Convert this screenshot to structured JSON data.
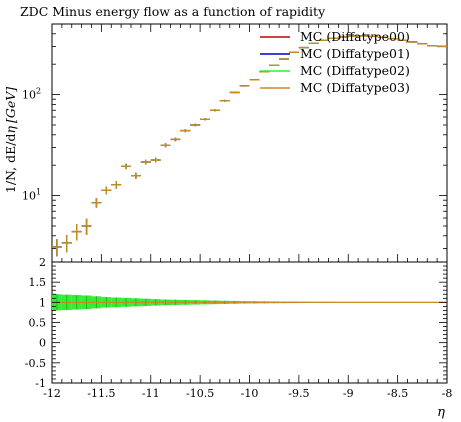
{
  "chart_data": [
    {
      "type": "line",
      "panel": "main",
      "title": "ZDC Minus energy flow as a function of rapidity",
      "ylabel": "1/N dE/dη [GeV]",
      "ylabel_parts": {
        "lhs": "1/N, dE/d",
        "sym": "η",
        "unit": "[GeV]"
      },
      "xlabel": "η",
      "yscale": "log",
      "xlim": [
        -12,
        -8
      ],
      "ylim": [
        2.2,
        500
      ],
      "y_tick_labels": [
        {
          "value": 10,
          "base": "10",
          "exp": "1"
        },
        {
          "value": 100,
          "base": "10",
          "exp": "2"
        }
      ],
      "legend_position": "top-right",
      "bins": {
        "x": [
          -11.95,
          -11.85,
          -11.75,
          -11.65,
          -11.55,
          -11.45,
          -11.35,
          -11.25,
          -11.15,
          -11.05,
          -10.95,
          -10.85,
          -10.75,
          -10.65,
          -10.55,
          -10.45,
          -10.35,
          -10.25,
          -10.15,
          -10.05,
          -9.95,
          -9.85,
          -9.75,
          -9.65,
          -9.55,
          -9.45,
          -9.35,
          -9.25,
          -9.15,
          -9.05,
          -8.95,
          -8.85,
          -8.75,
          -8.65,
          -8.55,
          -8.45,
          -8.35,
          -8.25,
          -8.15,
          -8.05
        ],
        "y": [
          3.1,
          3.4,
          4.4,
          5.0,
          8.5,
          11.3,
          12.8,
          19.5,
          15.7,
          21.5,
          22.5,
          31.5,
          36.0,
          44.0,
          50.0,
          57.0,
          70.0,
          87.0,
          105.0,
          122.0,
          140.0,
          168.0,
          195.0,
          225.0,
          262.0,
          292.0,
          322.0,
          345.0,
          362.0,
          372.0,
          380.0,
          381.0,
          377.0,
          370.0,
          358.0,
          345.0,
          332.0,
          318.0,
          305.0,
          300.0
        ],
        "err_lo": [
          2.5,
          2.75,
          3.6,
          4.1,
          7.6,
          10.3,
          11.7,
          18.3,
          14.6,
          20.3,
          21.3,
          30.0,
          34.5,
          42.4,
          48.4,
          55.4,
          68.2,
          85.0,
          103.0,
          120.0,
          138.0,
          166.0,
          193.0,
          222.0,
          259.0,
          289.0,
          319.0,
          342.0,
          359.0,
          369.0,
          377.0,
          378.0,
          374.0,
          367.0,
          355.0,
          342.0,
          329.0,
          315.0,
          302.0,
          297.0
        ],
        "err_hi": [
          3.7,
          4.05,
          5.2,
          5.9,
          9.4,
          12.3,
          13.9,
          20.7,
          16.8,
          22.7,
          23.7,
          33.0,
          37.5,
          45.6,
          51.6,
          58.6,
          71.8,
          89.0,
          107.0,
          124.0,
          142.0,
          170.0,
          197.0,
          228.0,
          265.0,
          295.0,
          325.0,
          348.0,
          365.0,
          375.0,
          383.0,
          384.0,
          380.0,
          373.0,
          361.0,
          348.0,
          335.0,
          321.0,
          308.0,
          303.0
        ]
      },
      "series": [
        {
          "name": "MC (Diffatype00)",
          "color": "#cc0000"
        },
        {
          "name": "MC (Diffatype01)",
          "color": "#0000cc"
        },
        {
          "name": "MC (Diffatype02)",
          "color": "#33ee33"
        },
        {
          "name": "MC (Diffatype03)",
          "color": "#cc8822"
        }
      ]
    },
    {
      "type": "area",
      "panel": "ratio",
      "xlabel": "η",
      "xlim": [
        -12,
        -8
      ],
      "ylim": [
        -1,
        2
      ],
      "x_ticks": [
        -12,
        -11.5,
        -11,
        -10.5,
        -10,
        -9.5,
        -9,
        -8.5,
        -8
      ],
      "x_tick_labels": [
        "-12",
        "-11.5",
        "-11",
        "-10.5",
        "-10",
        "-9.5",
        "-9",
        "-8.5",
        "-8"
      ],
      "y_ticks": [
        -1,
        -0.5,
        0,
        0.5,
        1,
        1.5,
        2
      ],
      "y_tick_labels": [
        "-1",
        "-0.5",
        "0",
        "0.5",
        "1",
        "1.5",
        "2"
      ],
      "ratio_value": 1.0,
      "band_halfwidth": [
        0.2,
        0.19,
        0.18,
        0.17,
        0.15,
        0.13,
        0.12,
        0.11,
        0.1,
        0.09,
        0.08,
        0.07,
        0.065,
        0.06,
        0.055,
        0.05,
        0.045,
        0.04,
        0.035,
        0.03,
        0.028,
        0.025,
        0.022,
        0.02,
        0.018,
        0.016,
        0.014,
        0.013,
        0.012,
        0.011,
        0.01,
        0.01,
        0.01,
        0.01,
        0.01,
        0.01,
        0.01,
        0.01,
        0.01,
        0.01
      ],
      "band_color": "#33ee33"
    }
  ]
}
